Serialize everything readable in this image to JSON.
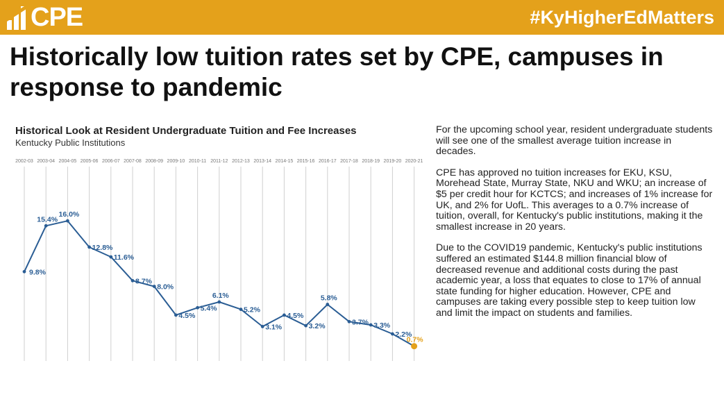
{
  "banner": {
    "logo_text": "CPE",
    "hashtag": "#KyHigherEdMatters",
    "color": "#e4a11b"
  },
  "headline": "Historically low tuition rates set by CPE, campuses in response to pandemic",
  "chart_data": {
    "type": "line",
    "title": "Historical Look at Resident Undergraduate Tuition and Fee Increases",
    "subtitle": "Kentucky Public Institutions",
    "categories": [
      "2002-03",
      "2003-04",
      "2004-05",
      "2005-06",
      "2006-07",
      "2007-08",
      "2008-09",
      "2009-10",
      "2010-11",
      "2011-12",
      "2012-13",
      "2013-14",
      "2014-15",
      "2015-16",
      "2016-17",
      "2017-18",
      "2018-19",
      "2019-20",
      "2020-21"
    ],
    "values": [
      9.8,
      15.4,
      16.0,
      12.8,
      11.6,
      8.7,
      8.0,
      4.5,
      5.4,
      6.1,
      5.2,
      3.1,
      4.5,
      3.2,
      5.8,
      3.7,
      3.3,
      2.2,
      0.7
    ],
    "labels": [
      "9.8%",
      "15.4%",
      "16.0%",
      "12.8%",
      "11.6%",
      "8.7%",
      "8.0%",
      "4.5%",
      "5.4%",
      "6.1%",
      "5.2%",
      "3.1%",
      "4.5%",
      "3.2%",
      "5.8%",
      "3.7%",
      "3.3%",
      "2.2%",
      "0.7%"
    ],
    "xlabel": "",
    "ylabel": "",
    "grid": "vertical",
    "line_color": "#2a5d94",
    "highlight_color": "#e4a11b",
    "highlight_index": 18
  },
  "body": {
    "paragraphs": [
      "For the upcoming school year, resident undergraduate students will see one of the smallest average tuition increase in decades.",
      "CPE has approved no tuition increases for EKU, KSU, Morehead State, Murray State, NKU and WKU; an increase of $5 per credit hour for KCTCS; and increases of 1% increase for UK, and 2% for UofL. This averages to a 0.7% increase of tuition, overall, for Kentucky's public institutions, making it the smallest increase in 20 years.",
      "Due to the COVID19 pandemic, Kentucky's public institutions suffered an estimated $144.8 million financial blow of decreased revenue and additional costs during the past academic year, a loss that equates to close to 17% of annual state funding for higher education. However, CPE and campuses are taking every possible step to keep tuition low and limit the impact on students and families."
    ]
  }
}
